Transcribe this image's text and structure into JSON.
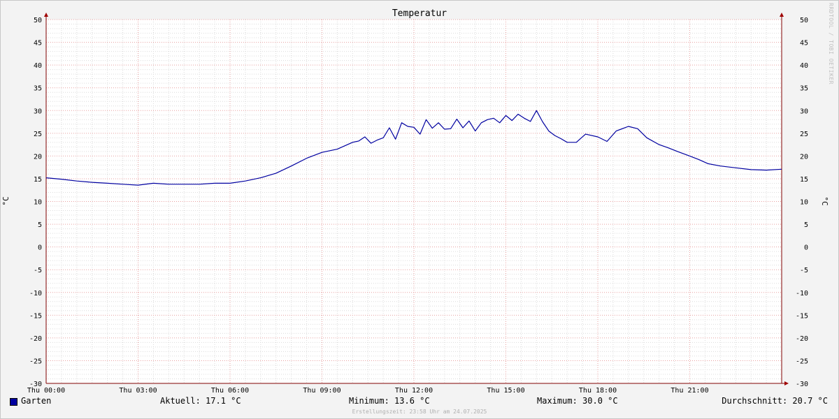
{
  "chart_data": {
    "type": "line",
    "title": "Temperatur",
    "ylabel": "°C",
    "ylim": [
      -30,
      50
    ],
    "ystep": 5,
    "yticks": [
      "50",
      "45",
      "40",
      "35",
      "30",
      "25",
      "20",
      "15",
      "10",
      "5",
      "0",
      "-5",
      "-10",
      "-15",
      "-20",
      "-25",
      "-30"
    ],
    "xlim": [
      0,
      24
    ],
    "xticks": [
      {
        "x": 0,
        "label": "Thu 00:00"
      },
      {
        "x": 3,
        "label": "Thu 03:00"
      },
      {
        "x": 6,
        "label": "Thu 06:00"
      },
      {
        "x": 9,
        "label": "Thu 09:00"
      },
      {
        "x": 12,
        "label": "Thu 12:00"
      },
      {
        "x": 15,
        "label": "Thu 15:00"
      },
      {
        "x": 18,
        "label": "Thu 18:00"
      },
      {
        "x": 21,
        "label": "Thu 21:00"
      }
    ],
    "grid": true,
    "series": [
      {
        "name": "Garten",
        "color": "#0000a0",
        "x": [
          0,
          0.5,
          1,
          1.5,
          2,
          2.5,
          3,
          3.5,
          4,
          4.5,
          5,
          5.5,
          6,
          6.5,
          7,
          7.5,
          8,
          8.5,
          9,
          9.5,
          10,
          10.2,
          10.4,
          10.6,
          10.8,
          11,
          11.2,
          11.4,
          11.6,
          11.8,
          12,
          12.2,
          12.4,
          12.6,
          12.8,
          13,
          13.2,
          13.4,
          13.6,
          13.8,
          14,
          14.2,
          14.4,
          14.6,
          14.8,
          15,
          15.2,
          15.4,
          15.6,
          15.8,
          16,
          16.2,
          16.4,
          16.6,
          16.8,
          17,
          17.3,
          17.6,
          18,
          18.3,
          18.6,
          19,
          19.3,
          19.6,
          20,
          20.3,
          20.6,
          21,
          21.3,
          21.6,
          22,
          22.5,
          23,
          23.5,
          24
        ],
        "y": [
          15.2,
          14.9,
          14.5,
          14.2,
          14.0,
          13.8,
          13.6,
          14.0,
          13.8,
          13.8,
          13.8,
          14.0,
          14.0,
          14.5,
          15.2,
          16.2,
          17.8,
          19.5,
          20.8,
          21.5,
          23.0,
          23.3,
          24.2,
          22.8,
          23.5,
          24.0,
          26.2,
          23.7,
          27.3,
          26.5,
          26.3,
          24.8,
          28.0,
          26.1,
          27.3,
          25.9,
          26.0,
          28.1,
          26.2,
          27.7,
          25.5,
          27.3,
          28.0,
          28.3,
          27.3,
          28.9,
          27.8,
          29.2,
          28.3,
          27.6,
          30.0,
          27.5,
          25.5,
          24.5,
          23.8,
          23.0,
          23.0,
          24.8,
          24.2,
          23.2,
          25.5,
          26.5,
          26.0,
          24.0,
          22.5,
          21.8,
          21.0,
          20.0,
          19.2,
          18.3,
          17.8,
          17.4,
          17.0,
          16.9,
          17.1
        ]
      }
    ]
  },
  "legend": {
    "series_label": "Garten",
    "current": "Aktuell: 17.1 °C",
    "minimum": "Minimum: 13.6 °C",
    "maximum": "Maximum: 30.0 °C",
    "average": "Durchschnitt: 20.7 °C"
  },
  "footer": "Erstellungszeit: 23:58 Uhr am 24.07.2025",
  "credit": "RRDTOOL / TOBI OETIKER"
}
